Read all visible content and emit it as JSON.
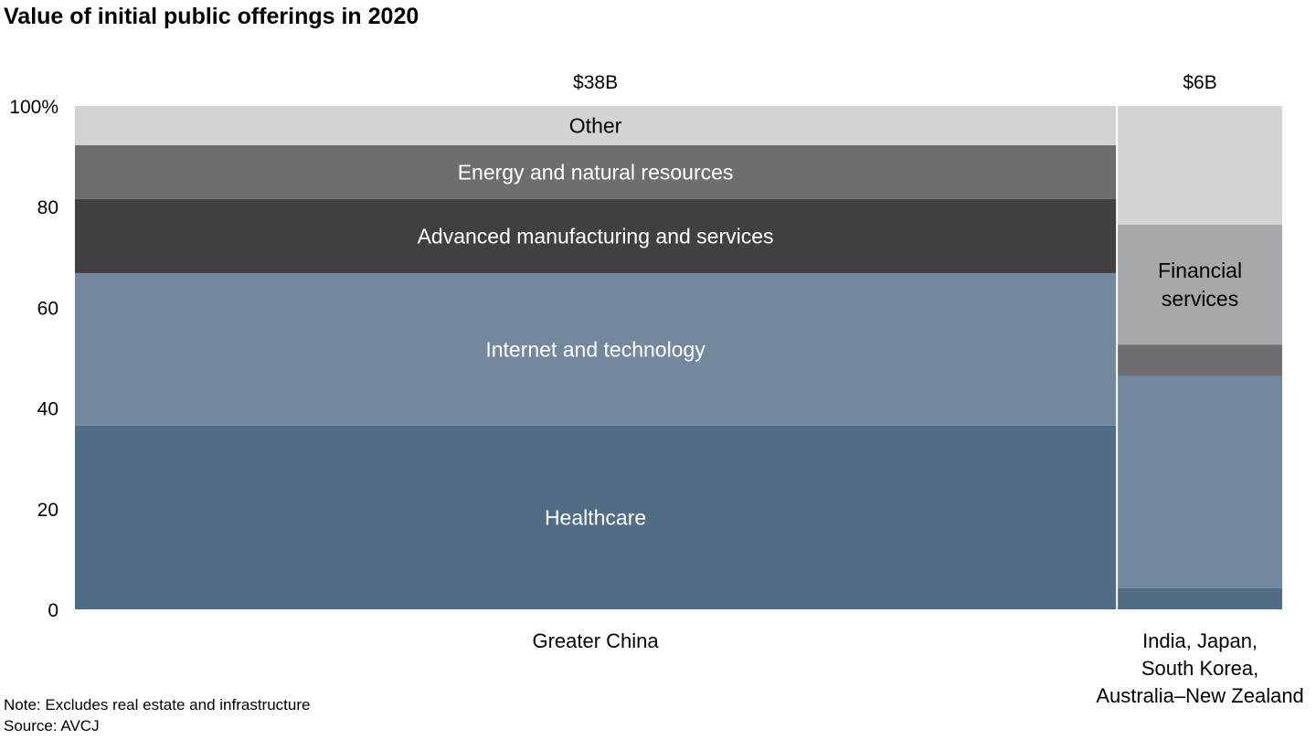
{
  "title": "Value of initial public offerings in 2020",
  "note": "Note: Excludes real estate and infrastructure",
  "source": "Source: AVCJ",
  "chart_data": {
    "type": "marimekko",
    "title": "Value of initial public offerings in 2020",
    "ylim": [
      0,
      100
    ],
    "yticks": [
      "0",
      "20",
      "40",
      "60",
      "80",
      "100%"
    ],
    "ytick_values": [
      0,
      20,
      40,
      60,
      80,
      100
    ],
    "segments": [
      {
        "name": "Healthcare",
        "color": "#516c85",
        "text_color": "#ffffff"
      },
      {
        "name": "Internet and technology",
        "color": "#72889c",
        "text_color": "#ffffff"
      },
      {
        "name": "Advanced manufacturing and services",
        "color": "#404042",
        "text_color": "#ffffff"
      },
      {
        "name": "Energy and natural resources",
        "color": "#6e6e72",
        "text_color": "#ffffff"
      },
      {
        "name": "Financial services",
        "color": "#a7a8ab",
        "text_color": "#000000"
      },
      {
        "name": "Other",
        "color": "#d2d3d5",
        "text_color": "#000000"
      }
    ],
    "columns": [
      {
        "label": [
          "Greater China"
        ],
        "total": "$38B",
        "total_value": 38,
        "values": [
          36.5,
          30.3,
          14.7,
          10.7,
          0,
          7.8
        ],
        "labels": [
          "Healthcare",
          "Internet and technology",
          "Advanced manufacturing and services",
          "Energy and natural resources",
          "",
          "Other"
        ]
      },
      {
        "label": [
          "India, Japan,",
          "South Korea,",
          "Australia–New Zealand"
        ],
        "total": "$6B",
        "total_value": 6,
        "values": [
          4.2,
          42.1,
          0,
          6.3,
          23.8,
          23.6
        ],
        "labels": [
          "",
          "",
          "",
          "",
          "Financial\nservices",
          ""
        ]
      }
    ]
  }
}
